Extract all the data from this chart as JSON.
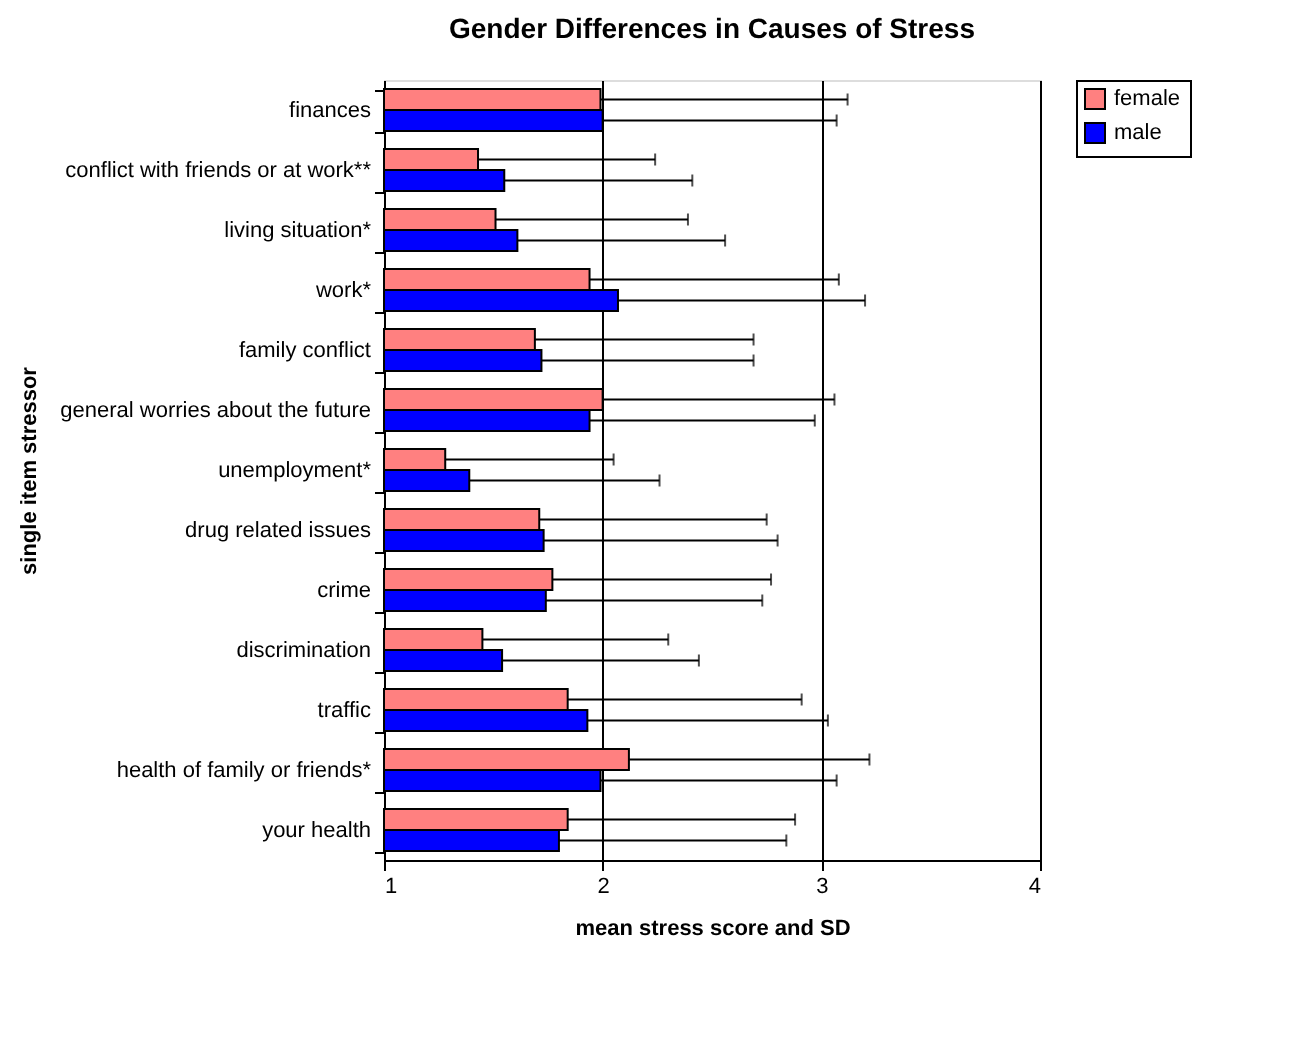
{
  "chart_data": {
    "type": "bar",
    "orientation": "horizontal",
    "title": "Gender Differences in Causes of Stress",
    "xlabel": "mean stress score and SD",
    "ylabel": "single item stressor",
    "categories": [
      "finances",
      "conflict with friends or at work**",
      "living situation*",
      "work*",
      "family conflict",
      "general worries about the future",
      "unemployment*",
      "drug related issues",
      "crime",
      "discrimination",
      "traffic",
      "health of family or friends*",
      "your health"
    ],
    "series": [
      {
        "name": "female",
        "color": "#ff8080",
        "values": [
          1.99,
          1.43,
          1.51,
          1.94,
          1.69,
          2.0,
          1.28,
          1.71,
          1.77,
          1.45,
          1.84,
          2.12,
          1.84
        ],
        "errors": [
          [
            1.99,
            3.12
          ],
          [
            1.43,
            2.24
          ],
          [
            1.51,
            2.39
          ],
          [
            1.94,
            3.08
          ],
          [
            1.69,
            2.69
          ],
          [
            2.0,
            3.06
          ],
          [
            1.28,
            2.05
          ],
          [
            1.71,
            2.75
          ],
          [
            1.77,
            2.77
          ],
          [
            1.45,
            2.3
          ],
          [
            1.84,
            2.91
          ],
          [
            2.12,
            3.22
          ],
          [
            1.84,
            2.88
          ]
        ]
      },
      {
        "name": "male",
        "color": "#0000ff",
        "values": [
          2.0,
          1.55,
          1.61,
          2.07,
          1.72,
          1.94,
          1.39,
          1.73,
          1.74,
          1.54,
          1.93,
          1.99,
          1.8
        ],
        "errors": [
          [
            2.0,
            3.07
          ],
          [
            1.55,
            2.41
          ],
          [
            1.61,
            2.56
          ],
          [
            2.07,
            3.2
          ],
          [
            1.72,
            2.69
          ],
          [
            1.94,
            2.97
          ],
          [
            1.39,
            2.26
          ],
          [
            1.73,
            2.8
          ],
          [
            1.74,
            2.73
          ],
          [
            1.54,
            2.44
          ],
          [
            1.93,
            3.03
          ],
          [
            1.99,
            3.07
          ],
          [
            1.8,
            2.84
          ]
        ]
      }
    ],
    "xlim": [
      1,
      4
    ],
    "xticks": [
      1,
      2,
      3,
      4
    ],
    "grid": "x",
    "legend": "right"
  }
}
